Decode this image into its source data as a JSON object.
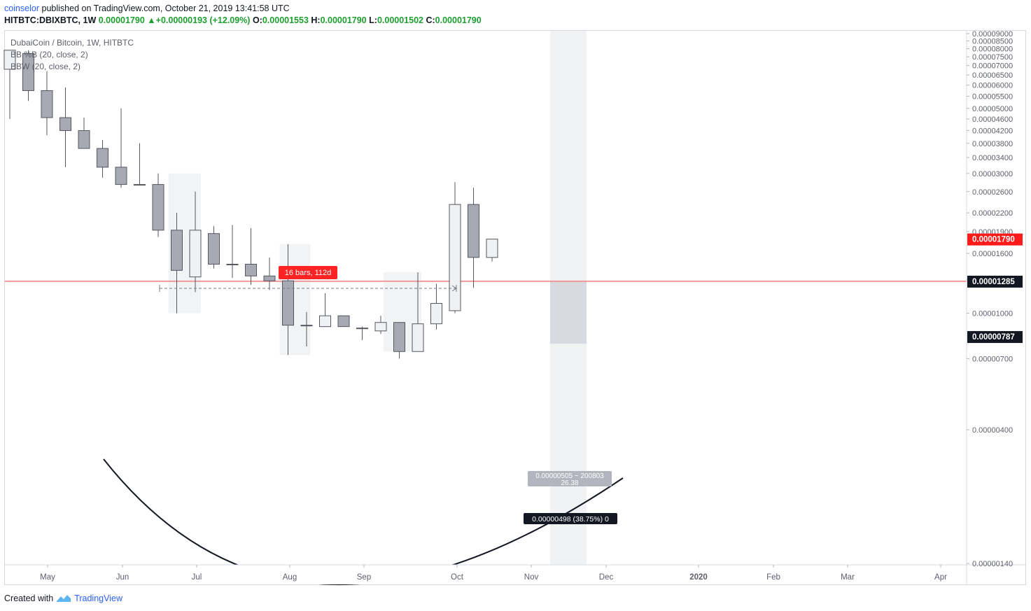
{
  "header": {
    "user": "coinselor",
    "published_text": " published on TradingView.com, October 21, 2019 13:41:58 UTC"
  },
  "ohlc": {
    "symbol": "HITBTC:DBIXBTC, 1W",
    "last": "0.00001790",
    "change": "+0.00000193 (+12.09%)",
    "o_label": "O:",
    "o": "0.00001553",
    "h_label": "H:",
    "h": "0.00001790",
    "l_label": "L:",
    "l": "0.00001502",
    "c_label": "C:",
    "c": "0.00001790"
  },
  "legend": {
    "title": "DubaiCoin / Bitcoin, 1W, HITBTC",
    "ind1": "BB %B (20, close, 2)",
    "ind2": "BBW (20, close, 2)"
  },
  "footer": {
    "created": "Created with",
    "brand": "TradingView"
  },
  "colors": {
    "up": "#f0f1f3",
    "down": "#a7a9b3",
    "wick": "#55575e",
    "hline": "#ef9a9a",
    "price_badge": "#ff1a1a",
    "dark_badge": "#131722"
  },
  "chart_data": {
    "type": "candlestick",
    "log_scale": true,
    "ylim": [
      1.4e-06,
      9e-05
    ],
    "y_ticks": [
      "0.00009000",
      "0.00008500",
      "0.00008000",
      "0.00007500",
      "0.00007000",
      "0.00006500",
      "0.00006000",
      "0.00005500",
      "0.00005000",
      "0.00004600",
      "0.00004200",
      "0.00003800",
      "0.00003400",
      "0.00003000",
      "0.00002600",
      "0.00002200",
      "0.00001900",
      "0.00001600",
      "0.00001300",
      "0.00001000",
      "0.00000700",
      "0.00000400",
      "0.00000140"
    ],
    "x_ticks": [
      "May",
      "Jun",
      "Jul",
      "Aug",
      "Sep",
      "Oct",
      "Nov",
      "Dec",
      "2020",
      "Feb",
      "Mar",
      "Apr"
    ],
    "candles": [
      {
        "o": 6.8e-05,
        "h": 7.9e-05,
        "l": 4.6e-05,
        "c": 7.9e-05
      },
      {
        "o": 7.7e-05,
        "h": 7.9e-05,
        "l": 5.3e-05,
        "c": 5.75e-05
      },
      {
        "o": 5.75e-05,
        "h": 6.7e-05,
        "l": 4.05e-05,
        "c": 4.65e-05
      },
      {
        "o": 4.65e-05,
        "h": 5.9e-05,
        "l": 3.15e-05,
        "c": 4.2e-05
      },
      {
        "o": 4.2e-05,
        "h": 4.65e-05,
        "l": 3.65e-05,
        "c": 3.65e-05
      },
      {
        "o": 3.65e-05,
        "h": 3.9e-05,
        "l": 2.9e-05,
        "c": 3.15e-05
      },
      {
        "o": 3.15e-05,
        "h": 5e-05,
        "l": 2.68e-05,
        "c": 2.75e-05
      },
      {
        "o": 2.75e-05,
        "h": 3.8e-05,
        "l": 2.75e-05,
        "c": 2.75e-05
      },
      {
        "o": 2.75e-05,
        "h": 3e-05,
        "l": 1.82e-05,
        "c": 1.92e-05
      },
      {
        "o": 1.92e-05,
        "h": 2.2e-05,
        "l": 1e-05,
        "c": 1.4e-05
      },
      {
        "o": 1.33e-05,
        "h": 2.6e-05,
        "l": 1.18e-05,
        "c": 1.92e-05
      },
      {
        "o": 1.87e-05,
        "h": 1.98e-05,
        "l": 1.42e-05,
        "c": 1.47e-05
      },
      {
        "o": 1.47e-05,
        "h": 2e-05,
        "l": 1.32e-05,
        "c": 1.47e-05
      },
      {
        "o": 1.47e-05,
        "h": 1.95e-05,
        "l": 1.25e-05,
        "c": 1.34e-05
      },
      {
        "o": 1.34e-05,
        "h": 1.55e-05,
        "l": 1.2e-05,
        "c": 1.29e-05
      },
      {
        "o": 1.29e-05,
        "h": 1.72e-05,
        "l": 7.2e-06,
        "c": 9.1e-06
      },
      {
        "o": 9.1e-06,
        "h": 1.01e-05,
        "l": 7.7e-06,
        "c": 9.1e-06
      },
      {
        "o": 9e-06,
        "h": 1.17e-05,
        "l": 9e-06,
        "c": 9.8e-06
      },
      {
        "o": 9.8e-06,
        "h": 9.8e-06,
        "l": 9e-06,
        "c": 9e-06
      },
      {
        "o": 8.9e-06,
        "h": 9e-06,
        "l": 8.1e-06,
        "c": 8.9e-06
      },
      {
        "o": 8.7e-06,
        "h": 9.8e-06,
        "l": 8.5e-06,
        "c": 9.3e-06
      },
      {
        "o": 9.3e-06,
        "h": 9.3e-06,
        "l": 7e-06,
        "c": 7.4e-06
      },
      {
        "o": 7.4e-06,
        "h": 1.38e-05,
        "l": 7.4e-06,
        "c": 9.2e-06
      },
      {
        "o": 9.2e-06,
        "h": 1.26e-05,
        "l": 8.8e-06,
        "c": 1.08e-05
      },
      {
        "o": 1.02e-05,
        "h": 2.8e-05,
        "l": 1e-05,
        "c": 2.35e-05
      },
      {
        "o": 2.35e-05,
        "h": 2.68e-05,
        "l": 1.22e-05,
        "c": 1.55e-05
      },
      {
        "o": 1.55e-05,
        "h": 1.79e-05,
        "l": 1.5e-05,
        "c": 1.79e-05
      }
    ],
    "hline": {
      "price": 1.285e-05,
      "label": "0.00001285"
    },
    "price_badge": {
      "price": 1.79e-05,
      "label": "0.00001790"
    },
    "low_badge": {
      "price": 7.87e-06,
      "label": "0.00000787"
    },
    "date_range_label": "16 bars, 112d",
    "measure_top": "0.00000505 ~ 200803",
    "measure_top2": "26.38",
    "measure_bottom": "0.00000498 (38.75%) 0"
  }
}
